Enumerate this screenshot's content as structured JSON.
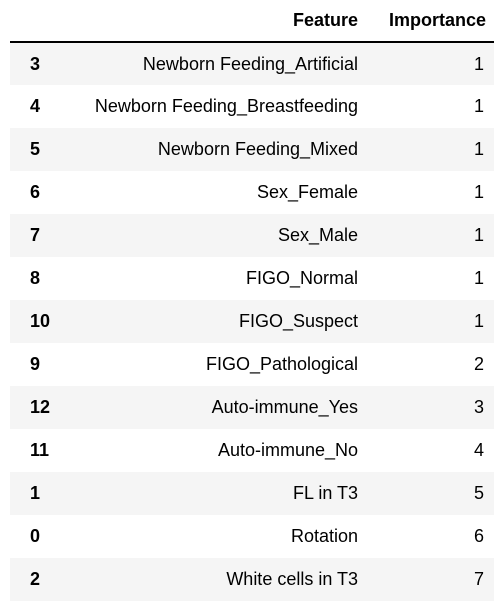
{
  "table": {
    "index_header": "",
    "columns": [
      "Feature",
      "Importance"
    ],
    "rows": [
      {
        "index": "3",
        "feature": "Newborn Feeding_Artificial",
        "importance": "1"
      },
      {
        "index": "4",
        "feature": "Newborn Feeding_Breastfeeding",
        "importance": "1"
      },
      {
        "index": "5",
        "feature": "Newborn Feeding_Mixed",
        "importance": "1"
      },
      {
        "index": "6",
        "feature": "Sex_Female",
        "importance": "1"
      },
      {
        "index": "7",
        "feature": "Sex_Male",
        "importance": "1"
      },
      {
        "index": "8",
        "feature": "FIGO_Normal",
        "importance": "1"
      },
      {
        "index": "10",
        "feature": "FIGO_Suspect",
        "importance": "1"
      },
      {
        "index": "9",
        "feature": "FIGO_Pathological",
        "importance": "2"
      },
      {
        "index": "12",
        "feature": "Auto-immune_Yes",
        "importance": "3"
      },
      {
        "index": "11",
        "feature": "Auto-immune_No",
        "importance": "4"
      },
      {
        "index": "1",
        "feature": "FL in T3",
        "importance": "5"
      },
      {
        "index": "0",
        "feature": "Rotation",
        "importance": "6"
      },
      {
        "index": "2",
        "feature": "White cells in T3",
        "importance": "7"
      }
    ]
  }
}
